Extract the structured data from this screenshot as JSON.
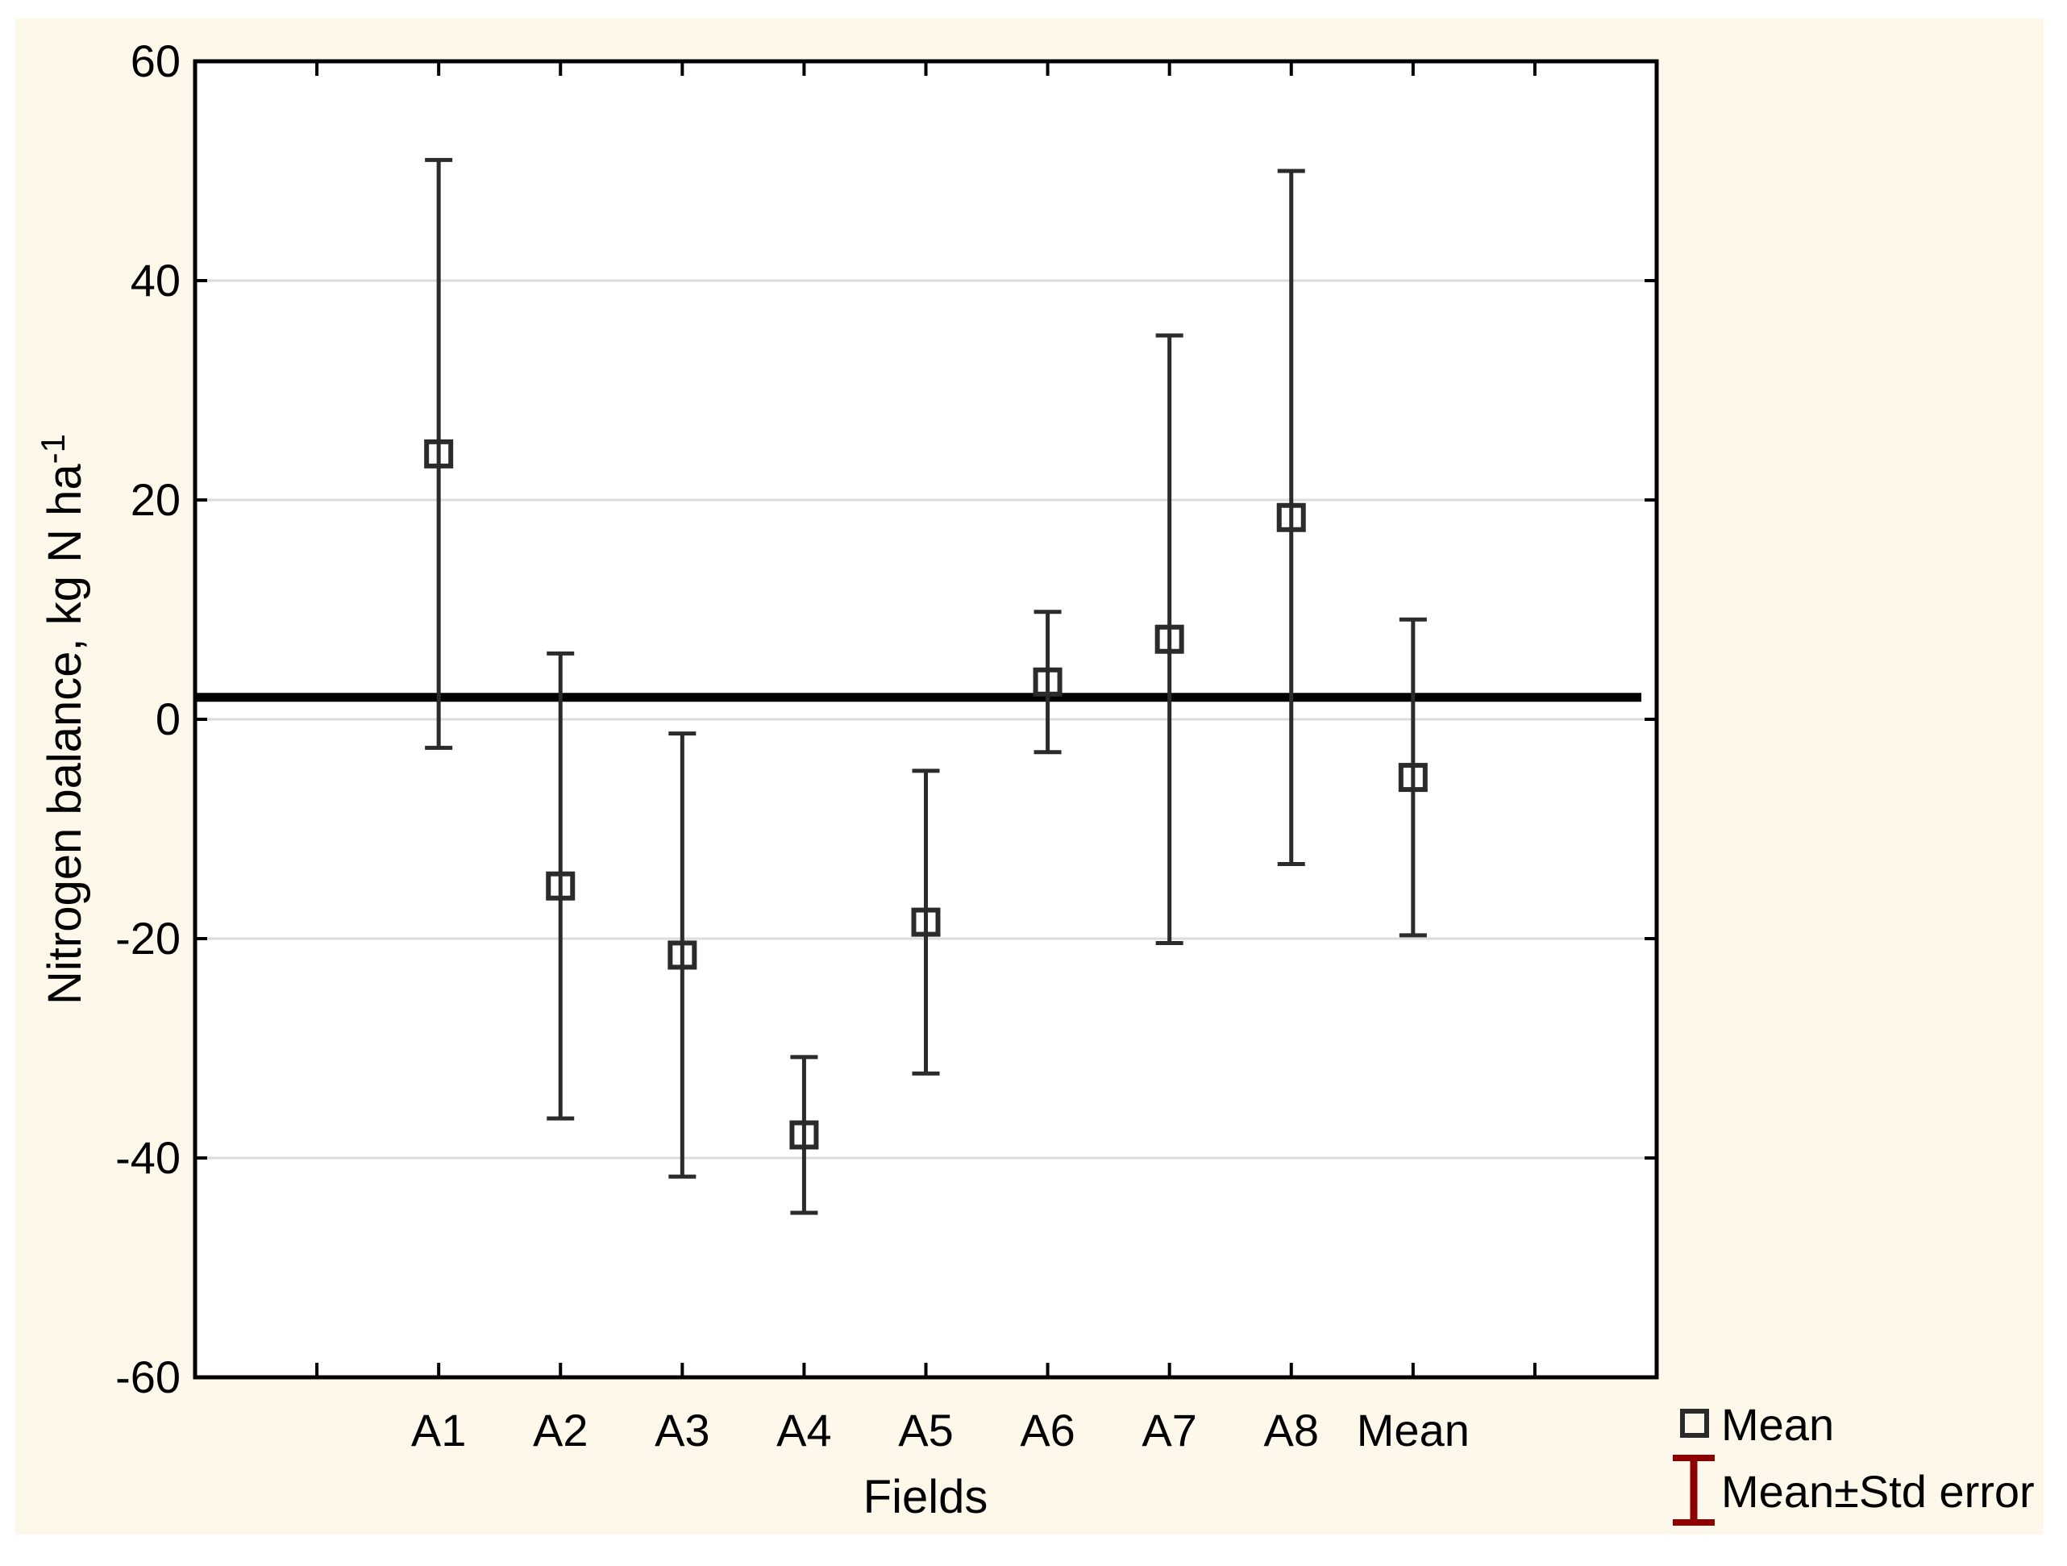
{
  "colors": {
    "page_background": "#FFFFFF",
    "panel_background": "#FDF8EA",
    "plot_background": "#FFFFFF",
    "gridline": "#DCDCDC",
    "axis": "#000000",
    "data_stroke": "#2B2B2B",
    "reference_line": "#000000",
    "legend_error_glyph": "#8B0000"
  },
  "chart_data": {
    "type": "scatter",
    "subtype": "means-with-standard-error-bars",
    "title": "",
    "xlabel": "Fields",
    "ylabel": "Nitrogen balance, kg N ha⁻¹",
    "ylabel_main": "Nitrogen balance, kg N ha",
    "ylabel_superscript": "-1",
    "ylim": [
      -60,
      60
    ],
    "yticks": [
      60,
      40,
      20,
      0,
      -20,
      -40,
      -60
    ],
    "grid_values": [
      40,
      20,
      0,
      -20,
      -40
    ],
    "grid": true,
    "categories": [
      "A1",
      "A2",
      "A3",
      "A4",
      "A5",
      "A6",
      "A7",
      "A8",
      "Mean"
    ],
    "points": [
      {
        "label": "A1",
        "mean": 24.2,
        "upper": 51.0,
        "lower": -2.6
      },
      {
        "label": "A2",
        "mean": -15.2,
        "upper": 6.0,
        "lower": -36.4
      },
      {
        "label": "A3",
        "mean": -21.5,
        "upper": -1.3,
        "lower": -41.7
      },
      {
        "label": "A4",
        "mean": -37.9,
        "upper": -30.8,
        "lower": -45.0
      },
      {
        "label": "A5",
        "mean": -18.5,
        "upper": -4.7,
        "lower": -32.3
      },
      {
        "label": "A6",
        "mean": 3.4,
        "upper": 9.8,
        "lower": -3.0
      },
      {
        "label": "A7",
        "mean": 7.3,
        "upper": 35.0,
        "lower": -20.4
      },
      {
        "label": "A8",
        "mean": 18.4,
        "upper": 50.0,
        "lower": -13.2
      },
      {
        "label": "Mean",
        "mean": -5.3,
        "upper": 9.1,
        "lower": -19.7
      }
    ],
    "reference_line_y": 2,
    "legend_position": "bottom-right"
  },
  "legend": {
    "items": [
      {
        "label": "Mean",
        "marker": "open-square"
      },
      {
        "label": "Mean±Std error",
        "marker": "error-bar-i-beam"
      }
    ]
  }
}
